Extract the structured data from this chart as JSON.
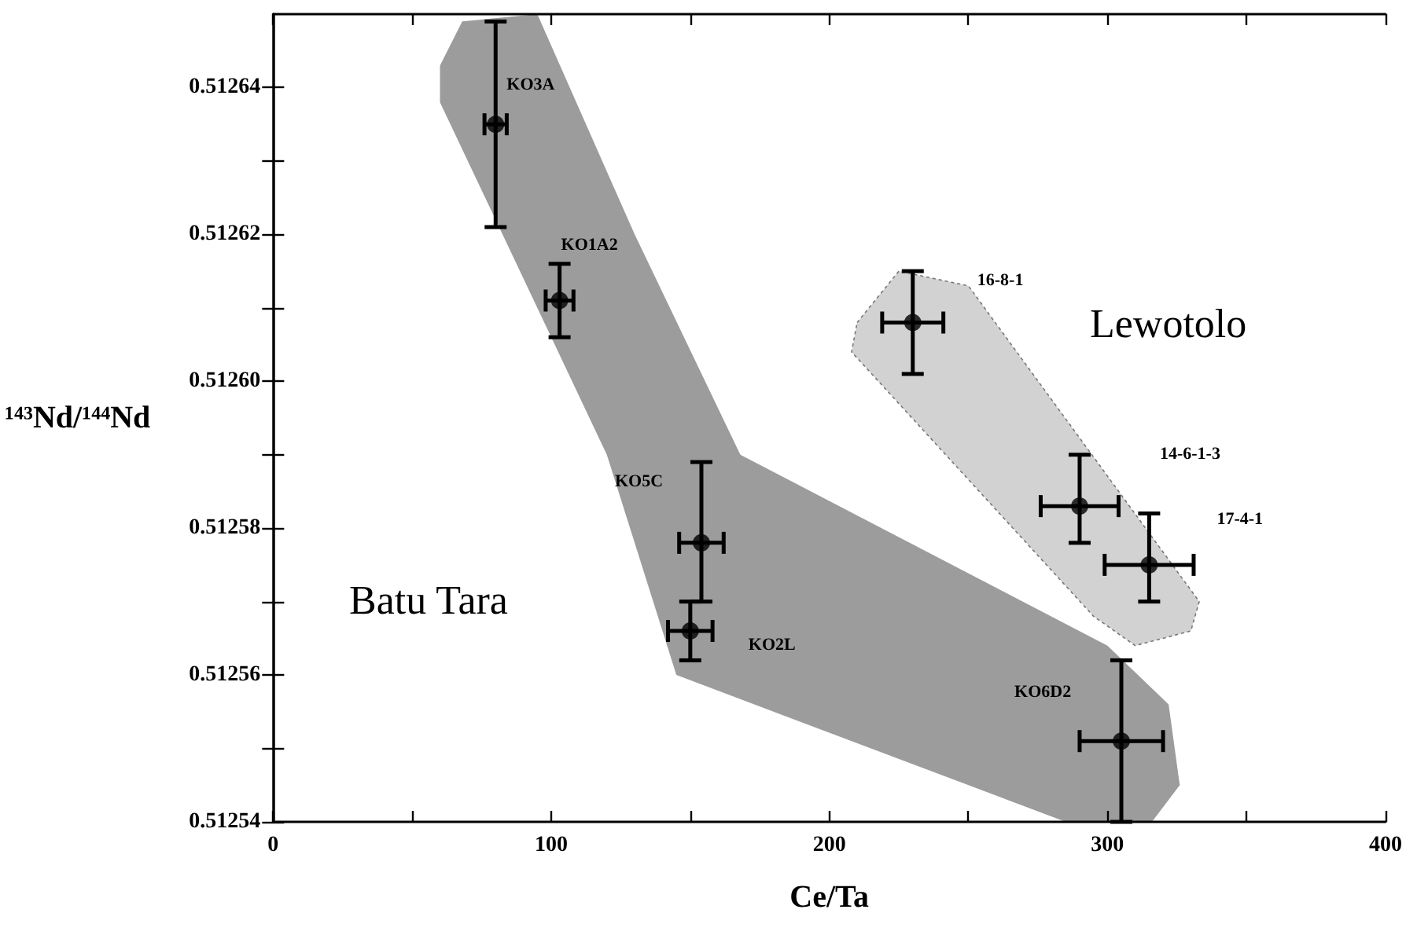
{
  "chart_data": {
    "type": "scatter",
    "xlabel": "Ce/Ta",
    "ylabel": "¹⁴³Nd/¹⁴⁴Nd",
    "series": [
      {
        "color": "#000000",
        "x": [
          80,
          103,
          154,
          150,
          305,
          230,
          290,
          315
        ],
        "values": [
          0.512635,
          0.512611,
          0.512578,
          0.512566,
          0.512551,
          0.512608,
          0.512583,
          0.512575
        ],
        "errors": [
          [
            0.512621,
            0.512649
          ],
          [
            0.512606,
            0.512616
          ],
          [
            0.51257,
            0.512589
          ],
          [
            0.512562,
            0.51257
          ],
          [
            0.51254,
            0.512562
          ],
          [
            0.512601,
            0.512615
          ],
          [
            0.512578,
            0.51259
          ],
          [
            0.51257,
            0.512582
          ]
        ],
        "xerrors": [
          4,
          5,
          8,
          8,
          15,
          11,
          14,
          16
        ]
      }
    ],
    "xlim": [
      0,
      400
    ],
    "xticks": [
      0,
      {
        "value": 50,
        "label": null
      },
      100,
      {
        "value": 150,
        "label": null
      },
      200,
      {
        "value": 250,
        "label": null
      },
      300,
      {
        "value": 350,
        "label": null
      },
      400
    ],
    "ylim": [
      0.51254,
      0.51265
    ],
    "yticks": [
      {
        "value": 0.51254,
        "label": "0.51254"
      },
      {
        "value": 0.51255,
        "label": null
      },
      {
        "value": 0.51256,
        "label": "0.51256"
      },
      {
        "value": 0.51257,
        "label": null
      },
      {
        "value": 0.51258,
        "label": "0.51258"
      },
      {
        "value": 0.51259,
        "label": null
      },
      {
        "value": 0.5126,
        "label": "0.51260"
      },
      {
        "value": 0.51261,
        "label": null
      },
      {
        "value": 0.51262,
        "label": "0.51262"
      },
      {
        "value": 0.51263,
        "label": null
      },
      {
        "value": 0.51264,
        "label": "0.51264"
      }
    ],
    "grid": false,
    "marker": "circle",
    "annotations": [
      "KO3A",
      "KO1A2",
      "KO5C",
      "KO2L",
      "KO6D2",
      "16-8-1",
      "14-6-1-3",
      "17-4-1",
      "Batu Tara",
      "Lewotolo"
    ]
  }
}
